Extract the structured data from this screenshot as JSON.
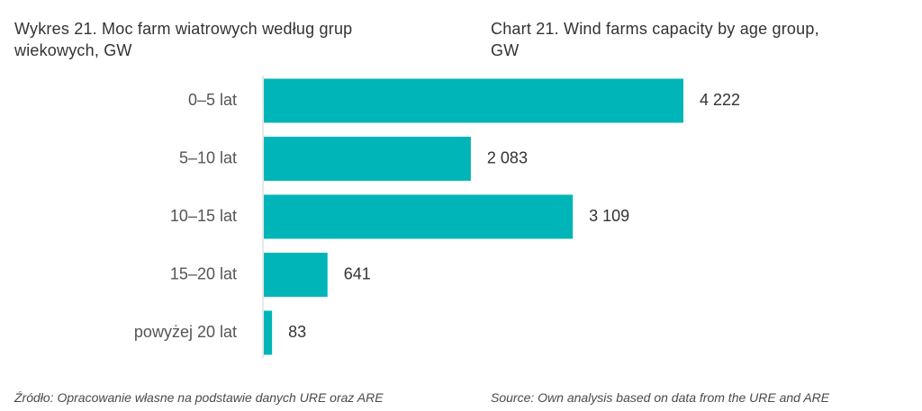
{
  "titles": {
    "pl": "Wykres 21. Moc farm wiatrowych według grup\nwiekowych, GW",
    "en": "Chart 21. Wind farms capacity by age group,\nGW"
  },
  "sources": {
    "pl": "Źródło: Opracowanie własne na podstawie danych URE oraz ARE",
    "en": "Source: Own analysis based on data from the URE and ARE"
  },
  "chart_data": {
    "type": "bar",
    "orientation": "horizontal",
    "categories": [
      "0–5 lat",
      "5–10 lat",
      "10–15 lat",
      "15–20 lat",
      "powyżej 20 lat"
    ],
    "values": [
      4222,
      2083,
      3109,
      641,
      83
    ],
    "value_labels": [
      "4 222",
      "2 083",
      "3 109",
      "641",
      "83"
    ],
    "title": "",
    "xlabel": "",
    "ylabel": "",
    "xlim": [
      0,
      4222
    ],
    "grid": false,
    "legend": "none",
    "bar_color": "#00b5b8"
  }
}
